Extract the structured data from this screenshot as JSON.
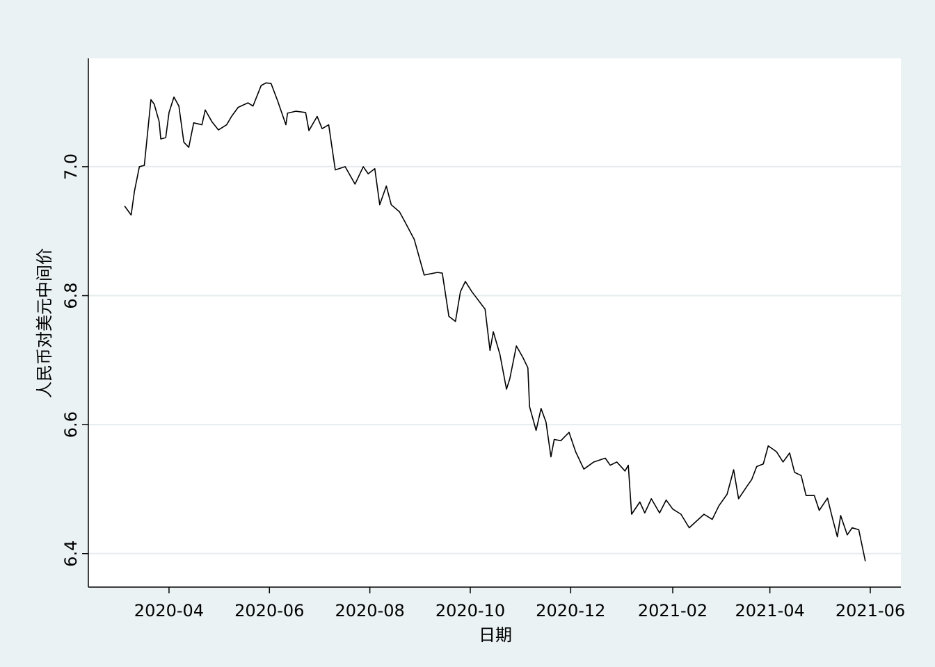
{
  "chart_data": {
    "type": "line",
    "xlabel": "日期",
    "ylabel": "人民币对美元中间价",
    "x": [
      21979,
      21983,
      21985,
      21988,
      21991,
      21995,
      21997,
      22000,
      22001,
      22004,
      22006,
      22009,
      22012,
      22015,
      22018,
      22021,
      22026,
      22028,
      22032,
      22036,
      22041,
      22044,
      22048,
      22054,
      22057,
      22062,
      22065,
      22068,
      22072,
      22077,
      22078,
      22083,
      22089,
      22091,
      22096,
      22099,
      22103,
      22107,
      22113,
      22119,
      22124,
      22127,
      22131,
      22134,
      22138,
      22141,
      22146,
      22149,
      22155,
      22161,
      22169,
      22172,
      22176,
      22180,
      22183,
      22186,
      22190,
      22198,
      22201,
      22203,
      22207,
      22211,
      22213,
      22217,
      22221,
      22224,
      22225,
      22229,
      22232,
      22235,
      22238,
      22240,
      22244,
      22249,
      22253,
      22258,
      22264,
      22271,
      22274,
      22278,
      22283,
      22285,
      22287,
      22292,
      22295,
      22299,
      22304,
      22308,
      22312,
      22317,
      22322,
      22331,
      22336,
      22340,
      22345,
      22349,
      22352,
      22357,
      22360,
      22363,
      22367,
      22370,
      22375,
      22379,
      22383,
      22386,
      22390,
      22393,
      22398,
      22401,
      22406,
      22409,
      22412,
      22414,
      22418,
      22421,
      22425,
      22429
    ],
    "series": [
      {
        "color": "#000000",
        "values": [
          6.939,
          6.925,
          6.962,
          7.0,
          7.002,
          7.104,
          7.097,
          7.07,
          7.043,
          7.045,
          7.084,
          7.108,
          7.094,
          7.038,
          7.03,
          7.068,
          7.065,
          7.088,
          7.07,
          7.057,
          7.065,
          7.078,
          7.092,
          7.099,
          7.094,
          7.126,
          7.13,
          7.129,
          7.102,
          7.065,
          7.083,
          7.086,
          7.084,
          7.056,
          7.078,
          7.059,
          7.065,
          6.995,
          7.0,
          6.973,
          7.0,
          6.989,
          6.997,
          6.941,
          6.97,
          6.941,
          6.93,
          6.916,
          6.887,
          6.832,
          6.836,
          6.835,
          6.768,
          6.76,
          6.806,
          6.822,
          6.806,
          6.779,
          6.715,
          6.744,
          6.709,
          6.655,
          6.671,
          6.722,
          6.704,
          6.688,
          6.628,
          6.591,
          6.625,
          6.604,
          6.55,
          6.577,
          6.575,
          6.588,
          6.558,
          6.531,
          6.542,
          6.548,
          6.537,
          6.542,
          6.528,
          6.537,
          6.461,
          6.48,
          6.463,
          6.485,
          6.463,
          6.483,
          6.469,
          6.461,
          6.44,
          6.461,
          6.453,
          6.474,
          6.492,
          6.53,
          6.485,
          6.504,
          6.515,
          6.535,
          6.539,
          6.567,
          6.558,
          6.542,
          6.556,
          6.526,
          6.521,
          6.49,
          6.49,
          6.467,
          6.486,
          6.455,
          6.426,
          6.459,
          6.429,
          6.44,
          6.437,
          6.388
        ]
      }
    ],
    "xlim": [
      21957,
      22450.6
    ],
    "xticks": [
      {
        "value": 22006,
        "label": "2020-04"
      },
      {
        "value": 22067,
        "label": "2020-06"
      },
      {
        "value": 22128,
        "label": "2020-08"
      },
      {
        "value": 22189,
        "label": "2020-10"
      },
      {
        "value": 22250,
        "label": "2020-12"
      },
      {
        "value": 22312,
        "label": "2021-02"
      },
      {
        "value": 22371,
        "label": "2021-04"
      },
      {
        "value": 22432,
        "label": "2021-06"
      }
    ],
    "ylim": [
      6.348,
      7.168
    ],
    "yticks": [
      6.4,
      6.6,
      6.8,
      {
        "value": 7,
        "label": "7.0"
      }
    ],
    "grid": true
  }
}
